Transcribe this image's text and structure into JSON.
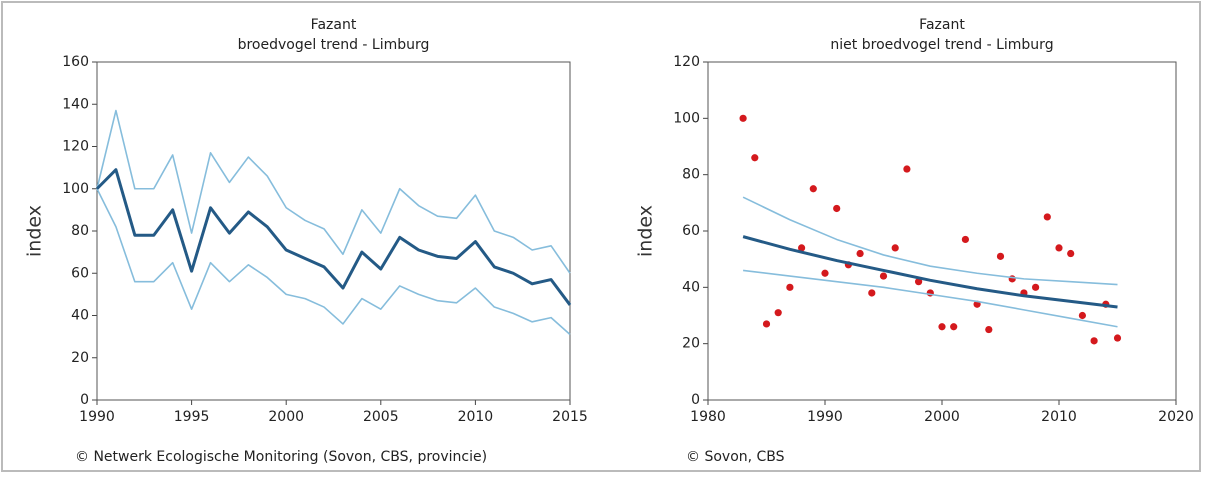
{
  "chart_data": [
    {
      "type": "line",
      "title": "Fazant",
      "subtitle": "broedvogel trend - Limburg",
      "y_label": "index",
      "source": "© Netwerk Ecologische Monitoring (Sovon, CBS, provincie)",
      "x": [
        1990,
        1991,
        1992,
        1993,
        1994,
        1995,
        1996,
        1997,
        1998,
        1999,
        2000,
        2001,
        2002,
        2003,
        2004,
        2005,
        2006,
        2007,
        2008,
        2009,
        2010,
        2011,
        2012,
        2013,
        2014,
        2015
      ],
      "series": [
        {
          "color": "#86bddc",
          "width": 1.6,
          "values": [
            100,
            137,
            100,
            100,
            116,
            79,
            117,
            103,
            115,
            106,
            91,
            85,
            81,
            69,
            90,
            79,
            100,
            92,
            87,
            86,
            97,
            80,
            77,
            71,
            73,
            60
          ]
        },
        {
          "color": "#86bddc",
          "width": 1.6,
          "values": [
            100,
            82,
            56,
            56,
            65,
            43,
            65,
            56,
            64,
            58,
            50,
            48,
            44,
            36,
            48,
            43,
            54,
            50,
            47,
            46,
            53,
            44,
            41,
            37,
            39,
            31
          ]
        },
        {
          "color": "#245a86",
          "width": 3,
          "values": [
            100,
            109,
            78,
            78,
            90,
            61,
            91,
            79,
            89,
            82,
            71,
            67,
            63,
            53,
            70,
            62,
            77,
            71,
            68,
            67,
            75,
            63,
            60,
            55,
            57,
            45
          ]
        }
      ],
      "xlim": [
        1990,
        2015
      ],
      "xticks": [
        1990,
        1995,
        2000,
        2005,
        2010,
        2015
      ],
      "ylim": [
        0,
        160
      ],
      "yticks": [
        0,
        20,
        40,
        60,
        80,
        100,
        120,
        140,
        160
      ]
    },
    {
      "type": "scatter",
      "title": "Fazant",
      "subtitle": "niet broedvogel trend - Limburg",
      "y_label": "index",
      "source": "© Sovon, CBS",
      "series": [
        {
          "mode": "markers",
          "color": "#d4191d",
          "x": [
            1983,
            1984,
            1985,
            1986,
            1987,
            1988,
            1989,
            1990,
            1991,
            1992,
            1993,
            1994,
            1995,
            1996,
            1997,
            1998,
            1999,
            2000,
            2001,
            2002,
            2003,
            2004,
            2005,
            2006,
            2007,
            2008,
            2009,
            2010,
            2011,
            2012,
            2013,
            2014,
            2015
          ],
          "values": [
            100,
            86,
            27,
            31,
            40,
            54,
            75,
            45,
            68,
            48,
            52,
            38,
            44,
            54,
            82,
            42,
            38,
            26,
            26,
            57,
            34,
            25,
            51,
            43,
            38,
            40,
            65,
            54,
            52,
            30,
            21,
            34,
            22
          ]
        },
        {
          "mode": "line",
          "color": "#86bddc",
          "width": 1.6,
          "x": [
            1983,
            1987,
            1991,
            1995,
            1999,
            2003,
            2007,
            2011,
            2015
          ],
          "values": [
            72,
            64,
            57,
            51.5,
            47.5,
            45,
            43,
            42,
            41
          ]
        },
        {
          "mode": "line",
          "color": "#86bddc",
          "width": 1.6,
          "x": [
            1983,
            1987,
            1991,
            1995,
            1999,
            2003,
            2007,
            2011,
            2015
          ],
          "values": [
            46,
            44,
            42,
            40,
            37.5,
            35,
            32,
            29,
            26
          ]
        },
        {
          "mode": "line",
          "color": "#245a86",
          "width": 3,
          "x": [
            1983,
            1987,
            1991,
            1995,
            1999,
            2003,
            2007,
            2011,
            2015
          ],
          "values": [
            58,
            53.5,
            49.5,
            46,
            42.5,
            39.5,
            37,
            35,
            33
          ]
        }
      ],
      "xlim": [
        1980,
        2020
      ],
      "xticks": [
        1980,
        1990,
        2000,
        2010,
        2020
      ],
      "ylim": [
        0,
        120
      ],
      "yticks": [
        0,
        20,
        40,
        60,
        80,
        100,
        120
      ]
    }
  ]
}
